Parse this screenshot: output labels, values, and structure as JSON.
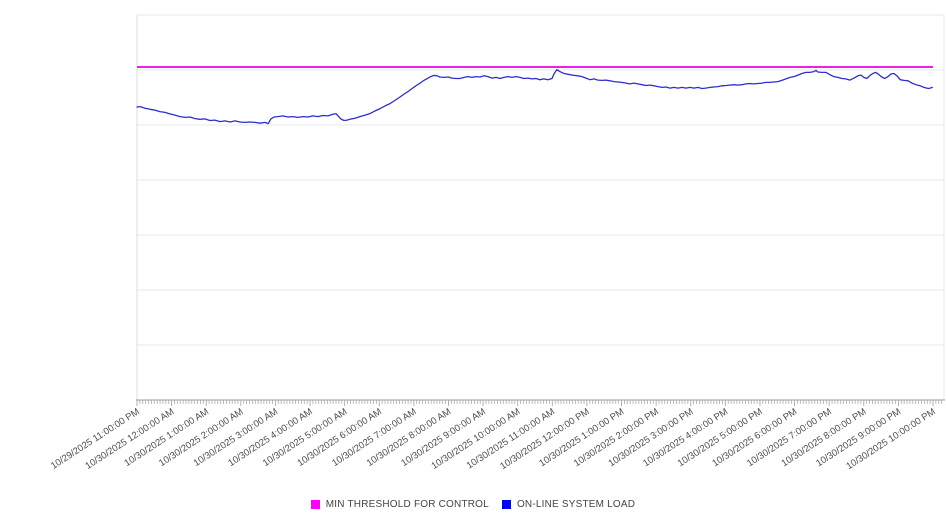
{
  "chart_data": {
    "type": "line",
    "title": "",
    "xlabel": "",
    "ylabel": "",
    "legend_position": "bottom-center",
    "grid": "horizontal gridlines only",
    "x_labels": [
      "10/29/2025 11:00:00 PM",
      "10/30/2025 12:00:00 AM",
      "10/30/2025 1:00:00 AM",
      "10/30/2025 2:00:00 AM",
      "10/30/2025 3:00:00 AM",
      "10/30/2025 4:00:00 AM",
      "10/30/2025 5:00:00 AM",
      "10/30/2025 6:00:00 AM",
      "10/30/2025 7:00:00 AM",
      "10/30/2025 8:00:00 AM",
      "10/30/2025 9:00:00 AM",
      "10/30/2025 10:00:00 AM",
      "10/30/2025 11:00:00 AM",
      "10/30/2025 12:00:00 PM",
      "10/30/2025 1:00:00 PM",
      "10/30/2025 2:00:00 PM",
      "10/30/2025 3:00:00 PM",
      "10/30/2025 4:00:00 PM",
      "10/30/2025 5:00:00 PM",
      "10/30/2025 6:00:00 PM",
      "10/30/2025 7:00:00 PM",
      "10/30/2025 8:00:00 PM",
      "10/30/2025 9:00:00 PM",
      "10/30/2025 10:00:00 PM"
    ],
    "x_label_rotation_deg": -33,
    "x_minor_ticks_per_hour": 12,
    "y_axis": {
      "labels_visible": false,
      "gridline_divisions": 7,
      "ylim": [
        0,
        100
      ],
      "y_value_note": "y-axis has no tick labels in the image; series values below are estimated as percent of plot height"
    },
    "series": [
      {
        "name": "MIN THRESHOLD FOR CONTROL",
        "color": "#FF00FF",
        "line_color": "#E800E8",
        "kind": "constant-threshold",
        "value": 86.5
      },
      {
        "name": "ON-LINE SYSTEM LOAD",
        "color": "#0000FF",
        "line_color": "#2D2DD2",
        "kind": "line",
        "x_unit": "hours after 10/29/2025 11:00:00 PM",
        "points": [
          [
            0,
            76.1
          ],
          [
            0.09,
            76.2
          ],
          [
            0.23,
            75.8
          ],
          [
            0.38,
            75.5
          ],
          [
            0.52,
            75.3
          ],
          [
            0.66,
            74.9
          ],
          [
            0.81,
            74.7
          ],
          [
            0.95,
            74.3
          ],
          [
            1.1,
            74
          ],
          [
            1.24,
            73.6
          ],
          [
            1.39,
            73.4
          ],
          [
            1.53,
            73.5
          ],
          [
            1.68,
            73.1
          ],
          [
            1.82,
            72.9
          ],
          [
            1.96,
            73
          ],
          [
            2.11,
            72.6
          ],
          [
            2.25,
            72.7
          ],
          [
            2.4,
            72.3
          ],
          [
            2.54,
            72.5
          ],
          [
            2.69,
            72.2
          ],
          [
            2.83,
            72.5
          ],
          [
            2.98,
            72.2
          ],
          [
            3.12,
            72.1
          ],
          [
            3.26,
            72.2
          ],
          [
            3.41,
            72.1
          ],
          [
            3.55,
            71.9
          ],
          [
            3.7,
            72.1
          ],
          [
            3.79,
            71.8
          ],
          [
            3.87,
            73
          ],
          [
            3.96,
            73.5
          ],
          [
            4.07,
            73.6
          ],
          [
            4.22,
            73.8
          ],
          [
            4.36,
            73.5
          ],
          [
            4.51,
            73.6
          ],
          [
            4.65,
            73.4
          ],
          [
            4.8,
            73.6
          ],
          [
            4.94,
            73.5
          ],
          [
            5.08,
            73.8
          ],
          [
            5.23,
            73.6
          ],
          [
            5.37,
            73.9
          ],
          [
            5.52,
            73.8
          ],
          [
            5.66,
            74.2
          ],
          [
            5.75,
            74.4
          ],
          [
            5.81,
            73.8
          ],
          [
            5.89,
            73
          ],
          [
            5.98,
            72.6
          ],
          [
            6.07,
            72.7
          ],
          [
            6.15,
            72.9
          ],
          [
            6.3,
            73.2
          ],
          [
            6.44,
            73.6
          ],
          [
            6.59,
            74
          ],
          [
            6.73,
            74.4
          ],
          [
            6.88,
            75.1
          ],
          [
            7.02,
            75.7
          ],
          [
            7.17,
            76.4
          ],
          [
            7.31,
            77
          ],
          [
            7.45,
            77.8
          ],
          [
            7.6,
            78.7
          ],
          [
            7.74,
            79.6
          ],
          [
            7.83,
            80.1
          ],
          [
            7.95,
            80.9
          ],
          [
            8.06,
            81.6
          ],
          [
            8.18,
            82.3
          ],
          [
            8.29,
            83
          ],
          [
            8.41,
            83.6
          ],
          [
            8.49,
            84
          ],
          [
            8.58,
            84.3
          ],
          [
            8.67,
            84.2
          ],
          [
            8.75,
            83.9
          ],
          [
            8.87,
            83.8
          ],
          [
            8.99,
            83.9
          ],
          [
            9.1,
            83.6
          ],
          [
            9.22,
            83.5
          ],
          [
            9.33,
            83.5
          ],
          [
            9.45,
            83.8
          ],
          [
            9.56,
            84
          ],
          [
            9.68,
            83.8
          ],
          [
            9.79,
            84
          ],
          [
            9.91,
            83.9
          ],
          [
            10.03,
            84.2
          ],
          [
            10.14,
            84
          ],
          [
            10.26,
            83.6
          ],
          [
            10.37,
            83.8
          ],
          [
            10.49,
            83.5
          ],
          [
            10.6,
            83.8
          ],
          [
            10.72,
            84
          ],
          [
            10.83,
            83.8
          ],
          [
            10.95,
            84
          ],
          [
            11.07,
            83.8
          ],
          [
            11.18,
            83.5
          ],
          [
            11.3,
            83.6
          ],
          [
            11.41,
            83.4
          ],
          [
            11.53,
            83.5
          ],
          [
            11.64,
            83.2
          ],
          [
            11.76,
            83.4
          ],
          [
            11.87,
            83.2
          ],
          [
            11.99,
            83.5
          ],
          [
            12.05,
            84.7
          ],
          [
            12.13,
            85.8
          ],
          [
            12.22,
            85.3
          ],
          [
            12.31,
            84.9
          ],
          [
            12.39,
            84.7
          ],
          [
            12.51,
            84.5
          ],
          [
            12.63,
            84.3
          ],
          [
            12.74,
            84.2
          ],
          [
            12.86,
            84
          ],
          [
            12.97,
            83.6
          ],
          [
            13.09,
            83.2
          ],
          [
            13.2,
            83.4
          ],
          [
            13.32,
            83.1
          ],
          [
            13.43,
            83
          ],
          [
            13.55,
            83.1
          ],
          [
            13.67,
            82.9
          ],
          [
            13.78,
            82.7
          ],
          [
            13.9,
            82.6
          ],
          [
            14.01,
            82.5
          ],
          [
            14.13,
            82.3
          ],
          [
            14.24,
            82.1
          ],
          [
            14.36,
            82.3
          ],
          [
            14.47,
            82.1
          ],
          [
            14.59,
            81.9
          ],
          [
            14.71,
            81.7
          ],
          [
            14.82,
            81.8
          ],
          [
            14.94,
            81.6
          ],
          [
            15.05,
            81.4
          ],
          [
            15.17,
            81.2
          ],
          [
            15.28,
            81.3
          ],
          [
            15.4,
            81
          ],
          [
            15.51,
            81.2
          ],
          [
            15.63,
            81
          ],
          [
            15.75,
            81.2
          ],
          [
            15.86,
            81
          ],
          [
            15.98,
            81.2
          ],
          [
            16.09,
            81
          ],
          [
            16.21,
            81.2
          ],
          [
            16.32,
            80.9
          ],
          [
            16.44,
            81
          ],
          [
            16.55,
            81.2
          ],
          [
            16.67,
            81.3
          ],
          [
            16.79,
            81.4
          ],
          [
            16.9,
            81.6
          ],
          [
            17.02,
            81.7
          ],
          [
            17.13,
            81.8
          ],
          [
            17.25,
            81.9
          ],
          [
            17.36,
            81.8
          ],
          [
            17.48,
            81.9
          ],
          [
            17.59,
            82.1
          ],
          [
            17.71,
            82.2
          ],
          [
            17.83,
            82.1
          ],
          [
            17.94,
            82.2
          ],
          [
            18.06,
            82.3
          ],
          [
            18.17,
            82.5
          ],
          [
            18.29,
            82.5
          ],
          [
            18.4,
            82.6
          ],
          [
            18.52,
            82.7
          ],
          [
            18.63,
            83
          ],
          [
            18.75,
            83.4
          ],
          [
            18.87,
            83.8
          ],
          [
            18.98,
            84
          ],
          [
            19.1,
            84.4
          ],
          [
            19.21,
            84.8
          ],
          [
            19.33,
            85.1
          ],
          [
            19.44,
            85.1
          ],
          [
            19.56,
            85.3
          ],
          [
            19.62,
            85.6
          ],
          [
            19.67,
            85.2
          ],
          [
            19.79,
            85.1
          ],
          [
            19.91,
            85.1
          ],
          [
            20.02,
            84.5
          ],
          [
            20.14,
            84
          ],
          [
            20.25,
            83.8
          ],
          [
            20.37,
            83.5
          ],
          [
            20.48,
            83.4
          ],
          [
            20.6,
            83.1
          ],
          [
            20.72,
            83.6
          ],
          [
            20.83,
            84.2
          ],
          [
            20.92,
            84.4
          ],
          [
            21,
            83.8
          ],
          [
            21.09,
            83.5
          ],
          [
            21.18,
            84.3
          ],
          [
            21.26,
            84.8
          ],
          [
            21.35,
            85.1
          ],
          [
            21.44,
            84.5
          ],
          [
            21.52,
            83.9
          ],
          [
            21.61,
            83.5
          ],
          [
            21.7,
            84
          ],
          [
            21.79,
            84.7
          ],
          [
            21.87,
            84.8
          ],
          [
            21.96,
            84.2
          ],
          [
            22.05,
            83.2
          ],
          [
            22.16,
            83
          ],
          [
            22.28,
            82.9
          ],
          [
            22.39,
            82.3
          ],
          [
            22.51,
            81.9
          ],
          [
            22.63,
            81.6
          ],
          [
            22.74,
            81.2
          ],
          [
            22.86,
            80.9
          ],
          [
            22.92,
            81
          ],
          [
            22.98,
            81.2
          ]
        ]
      }
    ]
  },
  "style_colors": {
    "gridline": "#e9e9e9",
    "plot_border": "#dcdcdc",
    "axis_line": "#9a9a9a",
    "tick": "#ababab",
    "axis_label_text": "#4d4d4d",
    "legend_text": "#444444",
    "background": "#ffffff"
  }
}
